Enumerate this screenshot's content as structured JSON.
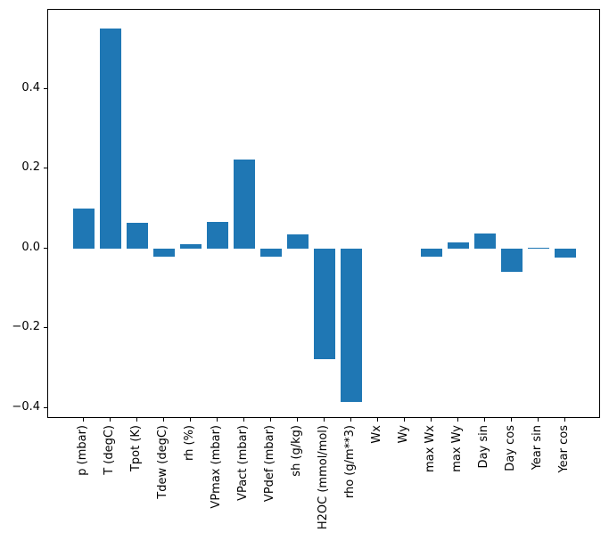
{
  "figure": {
    "background_color": "#ffffff",
    "axes_edge_color": "#000000",
    "tick_color": "#000000"
  },
  "chart_data": {
    "type": "bar",
    "title": "",
    "xlabel": "",
    "ylabel": "",
    "grid": false,
    "legend": null,
    "bar_color": "#1f77b4",
    "categories": [
      "p (mbar)",
      "T (degC)",
      "Tpot (K)",
      "Tdew (degC)",
      "rh (%)",
      "VPmax (mbar)",
      "VPact (mbar)",
      "VPdef (mbar)",
      "sh (g/kg)",
      "H2OC (mmol/mol)",
      "rho (g/m**3)",
      "Wx",
      "Wy",
      "max Wx",
      "max Wy",
      "Day sin",
      "Day cos",
      "Year sin",
      "Year cos"
    ],
    "values": [
      0.1,
      0.552,
      0.065,
      -0.019,
      0.012,
      0.068,
      0.223,
      -0.02,
      0.036,
      -0.276,
      -0.385,
      0.0005,
      0.0002,
      -0.019,
      0.016,
      0.037,
      -0.058,
      0.0025,
      -0.022
    ],
    "xticklabel_rotation_deg": 90,
    "ylim": [
      -0.427,
      0.598
    ],
    "yticks": [
      {
        "value": 0.4,
        "label": "0.4"
      },
      {
        "value": 0.2,
        "label": "0.2"
      },
      {
        "value": 0.0,
        "label": "0.0"
      },
      {
        "value": -0.2,
        "label": "−0.2"
      },
      {
        "value": -0.4,
        "label": "−0.4"
      }
    ]
  }
}
